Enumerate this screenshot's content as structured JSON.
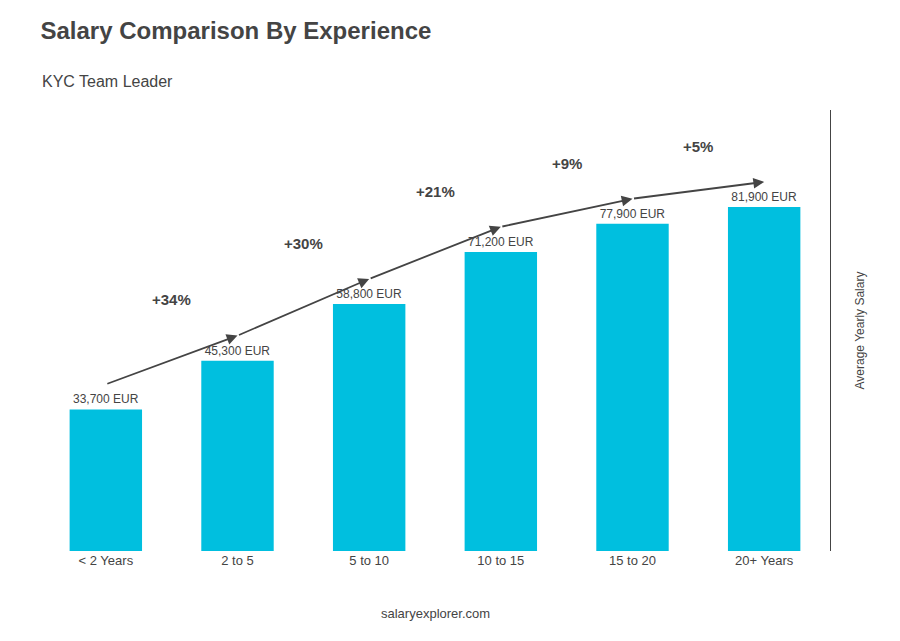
{
  "chart_data": {
    "type": "bar",
    "title": "Salary Comparison By Experience",
    "subtitle": "KYC Team Leader",
    "categories": [
      "< 2 Years",
      "2 to 5",
      "5 to 10",
      "10 to 15",
      "15 to 20",
      "20+ Years"
    ],
    "values": [
      33700,
      45300,
      58800,
      71200,
      77900,
      81900
    ],
    "value_labels": [
      "33,700 EUR",
      "45,300 EUR",
      "58,800 EUR",
      "71,200 EUR",
      "77,900 EUR",
      "81,900 EUR"
    ],
    "data_labels": true,
    "color": "#00BFDF",
    "ylabel": "Average Yearly Salary",
    "ylim": [
      0,
      105000
    ],
    "yticks": [],
    "tick_labels": "x",
    "grid": false,
    "annotations": [
      "+34%",
      "+30%",
      "+21%",
      "+9%",
      "+5%",
      "salaryexplorer.com"
    ]
  }
}
